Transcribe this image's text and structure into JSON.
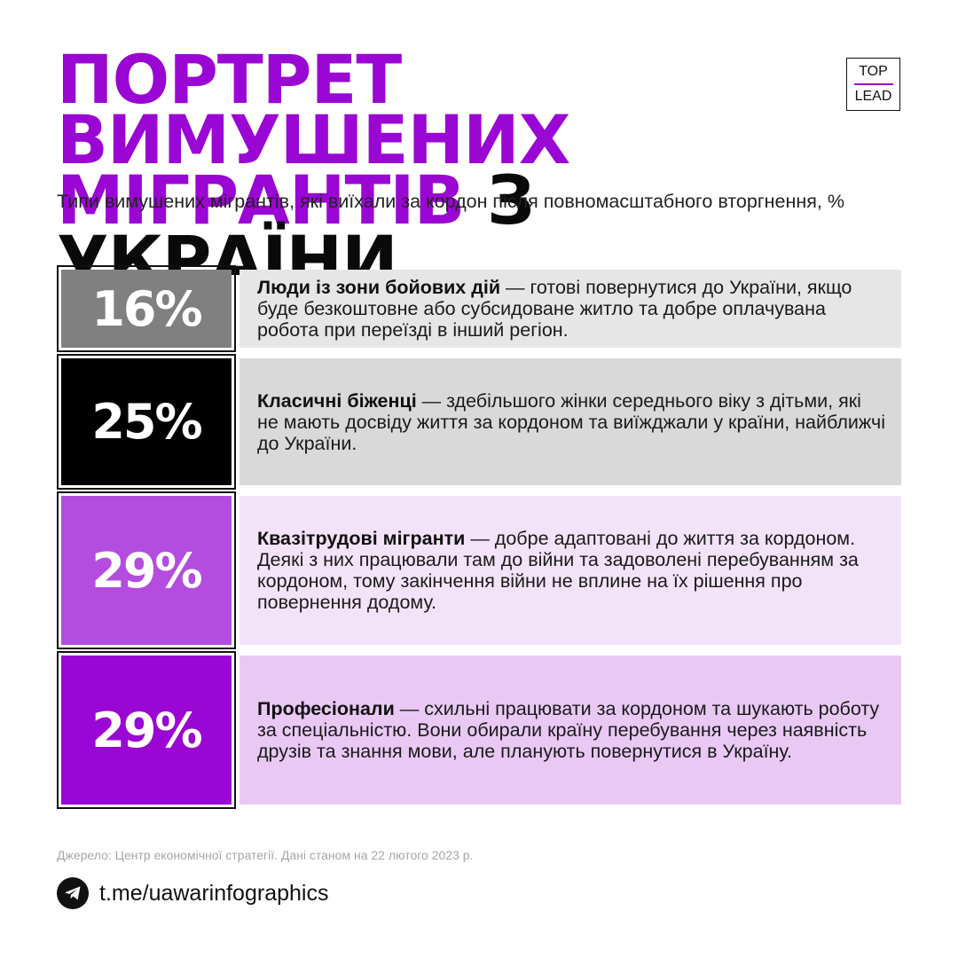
{
  "title": {
    "line1": "ПОРТРЕТ ВИМУШЕНИХ",
    "line2_accent": "МІГРАНТІВ",
    "line2_dark": "З УКРАЇНИ"
  },
  "logo": {
    "top": "TOP",
    "bottom": "LEAD"
  },
  "subtitle": "Типи вимушених мігрантів, які виїхали за кордон після повномасштабного вторгнення, %",
  "chart_data": {
    "type": "table",
    "title": "Типи вимушених мігрантів, які виїхали за кордон після повномасштабного вторгнення, %",
    "rows": [
      {
        "value": 16,
        "label": "16%",
        "name": "Люди із зони бойових дій",
        "text": " — готові повернутися до України, якщо буде безкоштовне або субсидоване житло та добре оплачувана робота при переїзді в інший регіон.",
        "color": "#808080",
        "bg": "#e6e6e6"
      },
      {
        "value": 25,
        "label": "25%",
        "name": "Класичні біженці",
        "text": " — здебільшого жінки середнього віку з дітьми, які не мають досвіду життя за кордоном та виїжджали у країни, найближчі до України.",
        "color": "#000000",
        "bg": "#d9d9d9"
      },
      {
        "value": 29,
        "label": "29%",
        "name": "Квазітрудові мігранти",
        "text": " — добре адаптовані до життя за кордоном. Деякі з них працювали там до війни та задоволені перебуванням за кордоном, тому закінчення війни не вплине на їх рішення про повернення додому.",
        "color": "#b44ddf",
        "bg": "#f3e3f8"
      },
      {
        "value": 29,
        "label": "29%",
        "name": "Професіонали",
        "text": " — схильні працювати за кордоном та шукають роботу за спеціальністю. Вони обирали країну перебування через наявність друзів та знання мови, але планують повернутися в Україну.",
        "color": "#9a06d3",
        "bg": "#e9c8f4"
      }
    ]
  },
  "colors": {
    "accent": "#9a06d3",
    "dark": "#0a0a0a"
  },
  "source": "Джерело: Центр економічної стратегії. Дані станом на 22 лютого 2023 р.",
  "footer": {
    "icon": "telegram-icon",
    "link": "t.me/uawarinfographics"
  }
}
